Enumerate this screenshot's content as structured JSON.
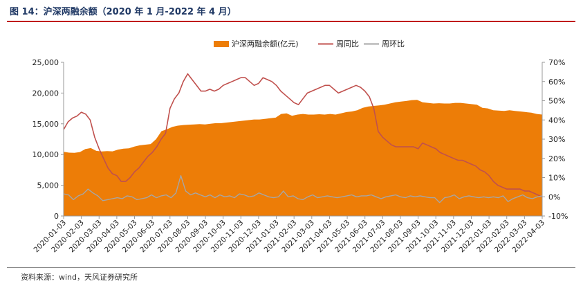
{
  "figure": {
    "title": "图 14：沪深两融余额（2020 年 1 月-2022 年 4 月）",
    "source": "资料来源：wind，天风证券研究所"
  },
  "colors": {
    "balance": "#ed7d07",
    "yoy": "#c0504d",
    "mom": "#a6a6a6",
    "axis": "#999999",
    "title": "#1f3864",
    "rule": "#c00000"
  },
  "chart_data": {
    "type": "area+line",
    "legend_position": "top-center",
    "legend": [
      "沪深两融余额(亿元)",
      "周同比",
      "周环比"
    ],
    "grid": false,
    "x_tick_labels": [
      "2020-01-03",
      "2020-02-03",
      "2020-03-03",
      "2020-04-03",
      "2020-05-03",
      "2020-06-03",
      "2020-07-03",
      "2020-08-03",
      "2020-09-03",
      "2020-10-03",
      "2020-11-03",
      "2020-12-03",
      "2021-01-03",
      "2021-02-03",
      "2021-03-03",
      "2021-04-03",
      "2021-05-03",
      "2021-06-03",
      "2021-07-03",
      "2021-08-03",
      "2021-09-03",
      "2021-10-03",
      "2021-11-03",
      "2021-12-03",
      "2022-01-03",
      "2022-02-03",
      "2022-03-03",
      "2022-04-03"
    ],
    "y_left": {
      "min": 0,
      "max": 25000,
      "ticks": [
        "0",
        "5,000",
        "10,000",
        "15,000",
        "20,000",
        "25,000"
      ]
    },
    "y_right": {
      "min": -10,
      "max": 70,
      "ticks": [
        "-10%",
        "0%",
        "10%",
        "20%",
        "30%",
        "40%",
        "50%",
        "60%",
        "70%"
      ]
    },
    "series": [
      {
        "name": "沪深两融余额(亿元)",
        "axis": "left",
        "kind": "area",
        "values": [
          10450,
          10300,
          10280,
          10400,
          10900,
          11050,
          10600,
          10500,
          10550,
          10520,
          10800,
          10950,
          11000,
          11300,
          11500,
          11600,
          11700,
          12500,
          13800,
          14100,
          14500,
          14700,
          14800,
          14850,
          14900,
          14950,
          14900,
          15000,
          15100,
          15100,
          15200,
          15300,
          15400,
          15500,
          15600,
          15700,
          15700,
          15800,
          15900,
          16000,
          16600,
          16700,
          16300,
          16500,
          16600,
          16500,
          16500,
          16550,
          16500,
          16600,
          16500,
          16700,
          16900,
          17000,
          17200,
          17600,
          17800,
          17900,
          18000,
          18100,
          18300,
          18500,
          18600,
          18700,
          18850,
          18900,
          18500,
          18400,
          18300,
          18350,
          18300,
          18300,
          18400,
          18400,
          18300,
          18200,
          18100,
          17600,
          17500,
          17200,
          17150,
          17100,
          17200,
          17100,
          17000,
          16900,
          16800,
          16600,
          16500
        ]
      },
      {
        "name": "周同比",
        "axis": "right",
        "kind": "line",
        "values": [
          35,
          39,
          41,
          42,
          44,
          43,
          40,
          31,
          25,
          20,
          15,
          12,
          11,
          8,
          8,
          10,
          13,
          15,
          18,
          21,
          23,
          26,
          30,
          33,
          46,
          51,
          54,
          60,
          64,
          61,
          58,
          55,
          55,
          56,
          55,
          56,
          58,
          59,
          60,
          61,
          62,
          62,
          60,
          58,
          59,
          62,
          61,
          60,
          58,
          55,
          53,
          51,
          49,
          48,
          51,
          54,
          55,
          56,
          57,
          58,
          58,
          56,
          54,
          55,
          56,
          57,
          58,
          57,
          55,
          52,
          46,
          34,
          31,
          29,
          27,
          26,
          26,
          26,
          26,
          26,
          25,
          28,
          27,
          26,
          25,
          23,
          22,
          21,
          20,
          19,
          19,
          18,
          17,
          16,
          14,
          13,
          11,
          8,
          6,
          5,
          4,
          4,
          4,
          4,
          3,
          3,
          2,
          1,
          0
        ]
      },
      {
        "name": "周环比",
        "axis": "right",
        "kind": "line",
        "values": [
          1.5,
          1,
          -1.5,
          0.5,
          1.5,
          4,
          2,
          0.5,
          -2,
          -1.5,
          -1,
          -0.5,
          -1,
          0.5,
          0,
          -1.5,
          -1,
          -0.5,
          1,
          -0.5,
          0.5,
          1,
          -0.5,
          2,
          11,
          3,
          1,
          2,
          1,
          0,
          1,
          -0.5,
          1,
          0,
          0.5,
          -0.5,
          1.5,
          1,
          0,
          0.5,
          2,
          1,
          0,
          -0.5,
          0,
          3,
          0,
          0.5,
          -1,
          -1.5,
          0,
          1,
          -0.5,
          0,
          0.5,
          0,
          -0.5,
          0,
          0.5,
          1,
          0,
          0.5,
          0.5,
          1,
          0,
          -1,
          0,
          0.5,
          1,
          0,
          -0.5,
          0.5,
          0,
          0.5,
          0,
          -0.5,
          -0.5,
          -3,
          -0.5,
          0,
          1,
          -1,
          0,
          0.5,
          0,
          -0.5,
          0,
          -0.5,
          0,
          -0.5,
          0.5,
          -2.5,
          -1,
          0,
          1,
          -0.5,
          -1,
          0,
          0.5
        ]
      }
    ]
  }
}
